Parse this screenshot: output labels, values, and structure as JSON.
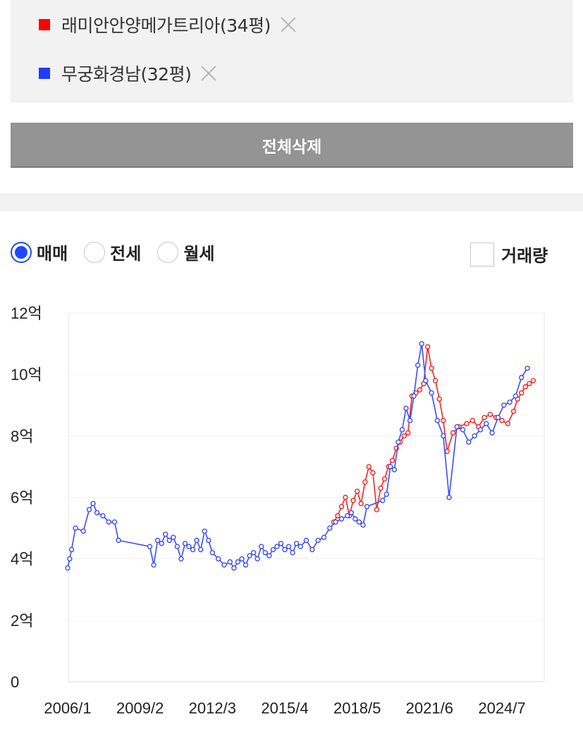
{
  "compare": {
    "items": [
      {
        "label": "래미안안양메가트리아(34평)",
        "color": "#ff0000"
      },
      {
        "label": "무궁화경남(32평)",
        "color": "#1f3cff"
      }
    ],
    "delete_all": "전체삭제"
  },
  "controls": {
    "radios": [
      {
        "label": "매매",
        "checked": true
      },
      {
        "label": "전세",
        "checked": false
      },
      {
        "label": "월세",
        "checked": false
      }
    ],
    "volume_label": "거래량",
    "volume_checked": false
  },
  "chart_data": {
    "type": "line",
    "title": "",
    "xlabel": "",
    "ylabel": "",
    "x_ticks": [
      "2006/1",
      "2009/2",
      "2012/3",
      "2015/4",
      "2018/5",
      "2021/6",
      "2024/7"
    ],
    "y_ticks": [
      "0",
      "2억",
      "4억",
      "6억",
      "8억",
      "10억",
      "12억"
    ],
    "ylim": [
      0,
      12
    ],
    "grid": true,
    "series": [
      {
        "color": "#ff2020",
        "unit": "억",
        "x": [
          "2017/5",
          "2017/7",
          "2017/9",
          "2017/11",
          "2018/1",
          "2018/3",
          "2018/5",
          "2018/7",
          "2018/9",
          "2018/11",
          "2019/1",
          "2019/3",
          "2019/5",
          "2019/7",
          "2019/9",
          "2019/11",
          "2020/1",
          "2020/3",
          "2020/5",
          "2020/7",
          "2020/9",
          "2020/11",
          "2021/1",
          "2021/3",
          "2021/5",
          "2021/7",
          "2021/9",
          "2021/11",
          "2022/1",
          "2022/3",
          "2022/6",
          "2022/9",
          "2023/1",
          "2023/4",
          "2023/7",
          "2023/10",
          "2024/1",
          "2024/4",
          "2024/7",
          "2024/10",
          "2025/1",
          "2025/3",
          "2025/5",
          "2025/7",
          "2025/9",
          "2025/11"
        ],
        "y": [
          5.2,
          5.4,
          5.7,
          6.0,
          5.4,
          5.9,
          6.2,
          5.8,
          6.5,
          7.0,
          6.8,
          5.6,
          6.3,
          6.6,
          7.0,
          7.2,
          7.6,
          7.8,
          8.0,
          8.1,
          9.3,
          9.4,
          9.5,
          9.7,
          10.9,
          10.2,
          9.8,
          9.2,
          8.5,
          7.5,
          8.1,
          8.3,
          8.4,
          8.5,
          8.3,
          8.6,
          8.7,
          8.6,
          8.5,
          8.4,
          8.8,
          9.2,
          9.4,
          9.6,
          9.7,
          9.8
        ]
      },
      {
        "color": "#3c4cff",
        "unit": "억",
        "x": [
          "2006/1",
          "2006/2",
          "2006/3",
          "2006/5",
          "2006/9",
          "2006/12",
          "2007/2",
          "2007/4",
          "2007/7",
          "2007/10",
          "2008/1",
          "2008/3",
          "2009/7",
          "2009/9",
          "2009/11",
          "2010/1",
          "2010/3",
          "2010/5",
          "2010/7",
          "2010/9",
          "2010/11",
          "2011/1",
          "2011/3",
          "2011/5",
          "2011/7",
          "2011/9",
          "2011/11",
          "2012/1",
          "2012/3",
          "2012/6",
          "2012/9",
          "2012/12",
          "2013/2",
          "2013/4",
          "2013/6",
          "2013/8",
          "2013/10",
          "2013/12",
          "2014/2",
          "2014/4",
          "2014/6",
          "2014/8",
          "2014/10",
          "2014/12",
          "2015/2",
          "2015/4",
          "2015/6",
          "2015/8",
          "2015/10",
          "2015/12",
          "2016/3",
          "2016/6",
          "2016/9",
          "2016/12",
          "2017/3",
          "2017/6",
          "2017/9",
          "2017/12",
          "2018/2",
          "2018/4",
          "2018/6",
          "2018/8",
          "2018/10",
          "2019/6",
          "2019/8",
          "2019/10",
          "2019/12",
          "2020/2",
          "2020/4",
          "2020/6",
          "2020/8",
          "2020/10",
          "2020/12",
          "2021/2",
          "2021/4",
          "2021/7",
          "2021/10",
          "2022/1",
          "2022/4",
          "2022/8",
          "2022/11",
          "2023/2",
          "2023/5",
          "2023/8",
          "2023/11",
          "2024/2",
          "2024/5",
          "2024/8",
          "2024/11",
          "2025/2",
          "2025/5",
          "2025/8"
        ],
        "y": [
          3.7,
          4.0,
          4.3,
          5.0,
          4.9,
          5.6,
          5.8,
          5.5,
          5.4,
          5.2,
          5.2,
          4.6,
          4.4,
          3.8,
          4.6,
          4.5,
          4.8,
          4.6,
          4.7,
          4.4,
          4.0,
          4.5,
          4.4,
          4.3,
          4.6,
          4.3,
          4.9,
          4.6,
          4.2,
          4.0,
          3.8,
          3.9,
          3.7,
          3.9,
          4.0,
          3.8,
          4.1,
          4.2,
          4.0,
          4.4,
          4.2,
          4.1,
          4.3,
          4.4,
          4.5,
          4.3,
          4.4,
          4.2,
          4.5,
          4.4,
          4.6,
          4.3,
          4.6,
          4.7,
          5.0,
          5.2,
          5.3,
          5.4,
          5.5,
          5.3,
          5.2,
          5.1,
          5.7,
          5.9,
          6.1,
          7.0,
          6.9,
          7.8,
          8.2,
          8.9,
          8.5,
          9.3,
          10.3,
          11.0,
          9.8,
          9.4,
          8.5,
          8.0,
          6.0,
          8.3,
          8.2,
          7.8,
          8.0,
          8.2,
          8.4,
          8.1,
          8.6,
          9.0,
          9.1,
          9.3,
          9.9,
          10.2
        ]
      }
    ]
  }
}
